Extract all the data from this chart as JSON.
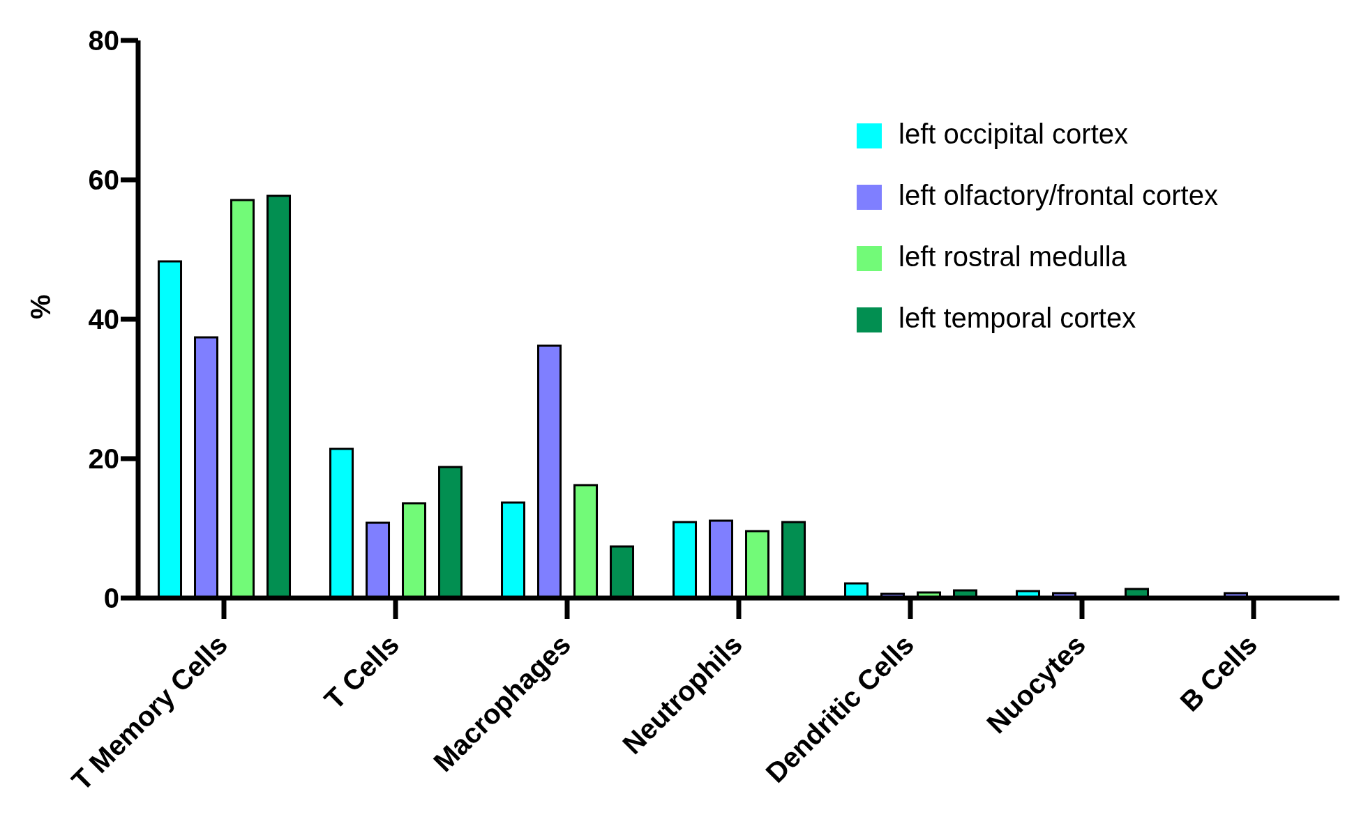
{
  "chart_data": {
    "type": "bar",
    "ylabel": "%",
    "categories": [
      "T Memory Cells",
      "T Cells",
      "Macrophages",
      "Neutrophils",
      "Dendritic Cells",
      "Nuocytes",
      "B Cells"
    ],
    "series": [
      {
        "name": "left occipital cortex",
        "color": "#00ffff",
        "values": [
          48.3,
          21.4,
          13.7,
          10.9,
          2.1,
          1.0,
          null
        ]
      },
      {
        "name": "left olfactory/frontal cortex",
        "color": "#7f7fff",
        "values": [
          37.4,
          10.8,
          36.2,
          11.1,
          0.6,
          0.7,
          0.7
        ]
      },
      {
        "name": "left rostral medulla",
        "color": "#72fa78",
        "values": [
          57.1,
          13.6,
          16.2,
          9.6,
          0.8,
          null,
          null
        ]
      },
      {
        "name": "left temporal cortex",
        "color": "#028f51",
        "values": [
          57.7,
          18.8,
          7.4,
          10.9,
          1.1,
          1.3,
          null
        ]
      }
    ],
    "ylim": [
      0,
      80
    ],
    "yticks": [
      0,
      20,
      40,
      60,
      80
    ],
    "legend": "top right"
  }
}
